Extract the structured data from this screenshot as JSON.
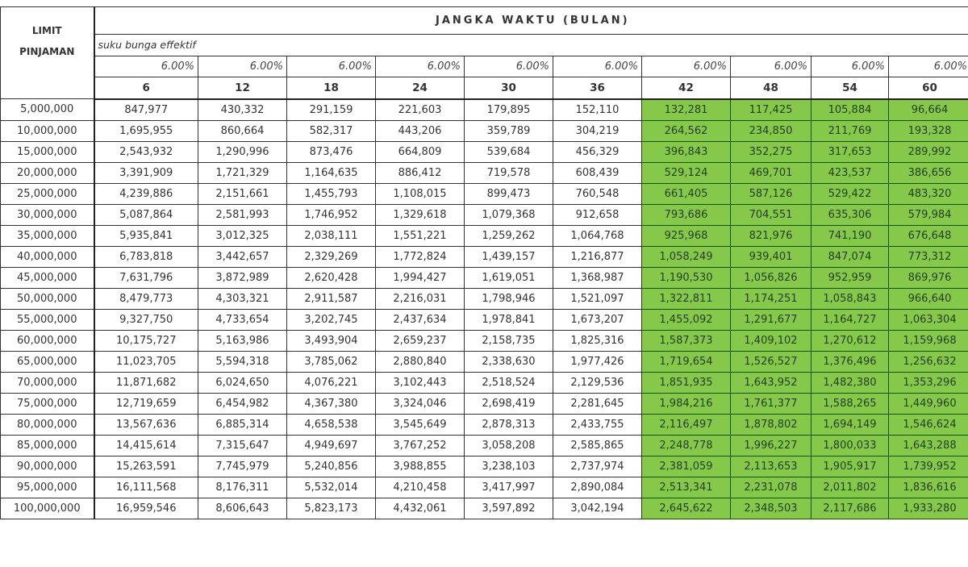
{
  "header": {
    "limit_label_line1": "LIMIT",
    "limit_label_line2": "PINJAMAN",
    "period_title": "JANGKA WAKTU (BULAN)",
    "rate_label": "suku bunga effektif"
  },
  "highlight_color": "#86c84a",
  "columns": [
    {
      "months": "6",
      "rate": "6.00%",
      "highlighted": false
    },
    {
      "months": "12",
      "rate": "6.00%",
      "highlighted": false
    },
    {
      "months": "18",
      "rate": "6.00%",
      "highlighted": false
    },
    {
      "months": "24",
      "rate": "6.00%",
      "highlighted": false
    },
    {
      "months": "30",
      "rate": "6.00%",
      "highlighted": false
    },
    {
      "months": "36",
      "rate": "6.00%",
      "highlighted": false
    },
    {
      "months": "42",
      "rate": "6.00%",
      "highlighted": true
    },
    {
      "months": "48",
      "rate": "6.00%",
      "highlighted": true
    },
    {
      "months": "54",
      "rate": "6.00%",
      "highlighted": true
    },
    {
      "months": "60",
      "rate": "6.00%",
      "highlighted": true
    }
  ],
  "rows": [
    {
      "limit": "5,000,000",
      "values": [
        "847,977",
        "430,332",
        "291,159",
        "221,603",
        "179,895",
        "152,110",
        "132,281",
        "117,425",
        "105,884",
        "96,664"
      ]
    },
    {
      "limit": "10,000,000",
      "values": [
        "1,695,955",
        "860,664",
        "582,317",
        "443,206",
        "359,789",
        "304,219",
        "264,562",
        "234,850",
        "211,769",
        "193,328"
      ]
    },
    {
      "limit": "15,000,000",
      "values": [
        "2,543,932",
        "1,290,996",
        "873,476",
        "664,809",
        "539,684",
        "456,329",
        "396,843",
        "352,275",
        "317,653",
        "289,992"
      ]
    },
    {
      "limit": "20,000,000",
      "values": [
        "3,391,909",
        "1,721,329",
        "1,164,635",
        "886,412",
        "719,578",
        "608,439",
        "529,124",
        "469,701",
        "423,537",
        "386,656"
      ]
    },
    {
      "limit": "25,000,000",
      "values": [
        "4,239,886",
        "2,151,661",
        "1,455,793",
        "1,108,015",
        "899,473",
        "760,548",
        "661,405",
        "587,126",
        "529,422",
        "483,320"
      ]
    },
    {
      "limit": "30,000,000",
      "values": [
        "5,087,864",
        "2,581,993",
        "1,746,952",
        "1,329,618",
        "1,079,368",
        "912,658",
        "793,686",
        "704,551",
        "635,306",
        "579,984"
      ]
    },
    {
      "limit": "35,000,000",
      "values": [
        "5,935,841",
        "3,012,325",
        "2,038,111",
        "1,551,221",
        "1,259,262",
        "1,064,768",
        "925,968",
        "821,976",
        "741,190",
        "676,648"
      ]
    },
    {
      "limit": "40,000,000",
      "values": [
        "6,783,818",
        "3,442,657",
        "2,329,269",
        "1,772,824",
        "1,439,157",
        "1,216,877",
        "1,058,249",
        "939,401",
        "847,074",
        "773,312"
      ]
    },
    {
      "limit": "45,000,000",
      "values": [
        "7,631,796",
        "3,872,989",
        "2,620,428",
        "1,994,427",
        "1,619,051",
        "1,368,987",
        "1,190,530",
        "1,056,826",
        "952,959",
        "869,976"
      ]
    },
    {
      "limit": "50,000,000",
      "values": [
        "8,479,773",
        "4,303,321",
        "2,911,587",
        "2,216,031",
        "1,798,946",
        "1,521,097",
        "1,322,811",
        "1,174,251",
        "1,058,843",
        "966,640"
      ]
    },
    {
      "limit": "55,000,000",
      "values": [
        "9,327,750",
        "4,733,654",
        "3,202,745",
        "2,437,634",
        "1,978,841",
        "1,673,207",
        "1,455,092",
        "1,291,677",
        "1,164,727",
        "1,063,304"
      ]
    },
    {
      "limit": "60,000,000",
      "values": [
        "10,175,727",
        "5,163,986",
        "3,493,904",
        "2,659,237",
        "2,158,735",
        "1,825,316",
        "1,587,373",
        "1,409,102",
        "1,270,612",
        "1,159,968"
      ]
    },
    {
      "limit": "65,000,000",
      "values": [
        "11,023,705",
        "5,594,318",
        "3,785,062",
        "2,880,840",
        "2,338,630",
        "1,977,426",
        "1,719,654",
        "1,526,527",
        "1,376,496",
        "1,256,632"
      ]
    },
    {
      "limit": "70,000,000",
      "values": [
        "11,871,682",
        "6,024,650",
        "4,076,221",
        "3,102,443",
        "2,518,524",
        "2,129,536",
        "1,851,935",
        "1,643,952",
        "1,482,380",
        "1,353,296"
      ]
    },
    {
      "limit": "75,000,000",
      "values": [
        "12,719,659",
        "6,454,982",
        "4,367,380",
        "3,324,046",
        "2,698,419",
        "2,281,645",
        "1,984,216",
        "1,761,377",
        "1,588,265",
        "1,449,960"
      ]
    },
    {
      "limit": "80,000,000",
      "values": [
        "13,567,636",
        "6,885,314",
        "4,658,538",
        "3,545,649",
        "2,878,313",
        "2,433,755",
        "2,116,497",
        "1,878,802",
        "1,694,149",
        "1,546,624"
      ]
    },
    {
      "limit": "85,000,000",
      "values": [
        "14,415,614",
        "7,315,647",
        "4,949,697",
        "3,767,252",
        "3,058,208",
        "2,585,865",
        "2,248,778",
        "1,996,227",
        "1,800,033",
        "1,643,288"
      ]
    },
    {
      "limit": "90,000,000",
      "values": [
        "15,263,591",
        "7,745,979",
        "5,240,856",
        "3,988,855",
        "3,238,103",
        "2,737,974",
        "2,381,059",
        "2,113,653",
        "1,905,917",
        "1,739,952"
      ]
    },
    {
      "limit": "95,000,000",
      "values": [
        "16,111,568",
        "8,176,311",
        "5,532,014",
        "4,210,458",
        "3,417,997",
        "2,890,084",
        "2,513,341",
        "2,231,078",
        "2,011,802",
        "1,836,616"
      ]
    },
    {
      "limit": "100,000,000",
      "values": [
        "16,959,546",
        "8,606,643",
        "5,823,173",
        "4,432,061",
        "3,597,892",
        "3,042,194",
        "2,645,622",
        "2,348,503",
        "2,117,686",
        "1,933,280"
      ]
    }
  ]
}
